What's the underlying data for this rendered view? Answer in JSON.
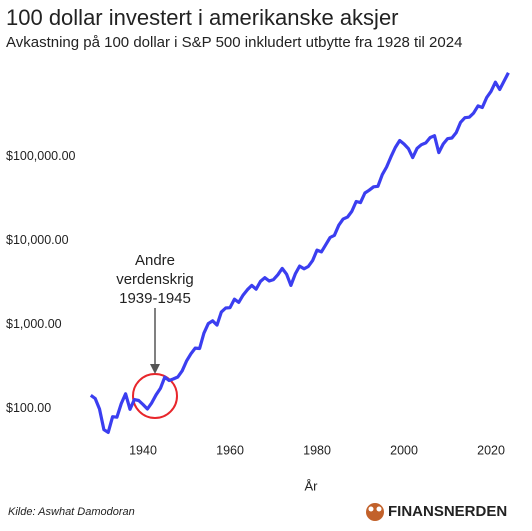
{
  "chart_data": {
    "type": "line",
    "title": "100 dollar investert i amerikanske aksjer",
    "subtitle": "Avkastning på 100 dollar i S&P 500 inkludert utbytte fra 1928 til 2024",
    "x_label": "År",
    "source": "Kilde: Aswhat Damodoran",
    "logo": "FINANSNERDEN",
    "annotation": [
      "Andre",
      "verdenskrig",
      "1939-1945"
    ],
    "log_scale_y": true,
    "grid": false,
    "xlim": [
      1926.5,
      2025
    ],
    "xticks": [
      1940,
      1960,
      1980,
      2000,
      2020
    ],
    "ylim": [
      40,
      1500000
    ],
    "yticks": [
      {
        "value": 100,
        "label": "$100.00"
      },
      {
        "value": 1000,
        "label": "$1,000.00"
      },
      {
        "value": 10000,
        "label": "$10,000.00"
      },
      {
        "value": 100000,
        "label": "$100,000.00"
      }
    ],
    "x": [
      1928,
      1929,
      1930,
      1931,
      1932,
      1933,
      1934,
      1935,
      1936,
      1937,
      1938,
      1939,
      1940,
      1941,
      1942,
      1943,
      1944,
      1945,
      1946,
      1947,
      1948,
      1949,
      1950,
      1951,
      1952,
      1953,
      1954,
      1955,
      1956,
      1957,
      1958,
      1959,
      1960,
      1961,
      1962,
      1963,
      1964,
      1965,
      1966,
      1967,
      1968,
      1969,
      1970,
      1971,
      1972,
      1973,
      1974,
      1975,
      1976,
      1977,
      1978,
      1979,
      1980,
      1981,
      1982,
      1983,
      1984,
      1985,
      1986,
      1987,
      1988,
      1989,
      1990,
      1991,
      1992,
      1993,
      1994,
      1995,
      1996,
      1997,
      1998,
      1999,
      2000,
      2001,
      2002,
      2003,
      2004,
      2005,
      2006,
      2007,
      2008,
      2009,
      2010,
      2011,
      2012,
      2013,
      2014,
      2015,
      2016,
      2017,
      2018,
      2019,
      2020,
      2021,
      2022,
      2023,
      2024
    ],
    "series": [
      {
        "name": "S&P 500",
        "color": "#3b3ef0",
        "values": [
          144,
          132,
          99,
          56,
          52,
          80,
          79,
          115,
          150,
          98,
          128,
          125,
          112,
          99,
          117,
          146,
          174,
          237,
          216,
          226,
          238,
          282,
          368,
          449,
          525,
          520,
          790,
          1030,
          1110,
          988,
          1410,
          1580,
          1590,
          2010,
          1840,
          2250,
          2610,
          2930,
          2640,
          3270,
          3620,
          3310,
          3440,
          3930,
          4670,
          3990,
          2930,
          4020,
          4980,
          4630,
          4930,
          5830,
          7730,
          7360,
          8940,
          10900,
          11600,
          15300,
          18100,
          19100,
          22300,
          29300,
          28400,
          37000,
          39900,
          43900,
          44500,
          61200,
          75400,
          100000,
          129000,
          156000,
          142000,
          125000,
          97600,
          126000,
          139000,
          146000,
          169000,
          178000,
          112000,
          142000,
          164000,
          167000,
          194000,
          257000,
          292000,
          296000,
          331000,
          403000,
          386000,
          507000,
          600000,
          773000,
          633000,
          799000,
          1000000
        ]
      }
    ]
  }
}
